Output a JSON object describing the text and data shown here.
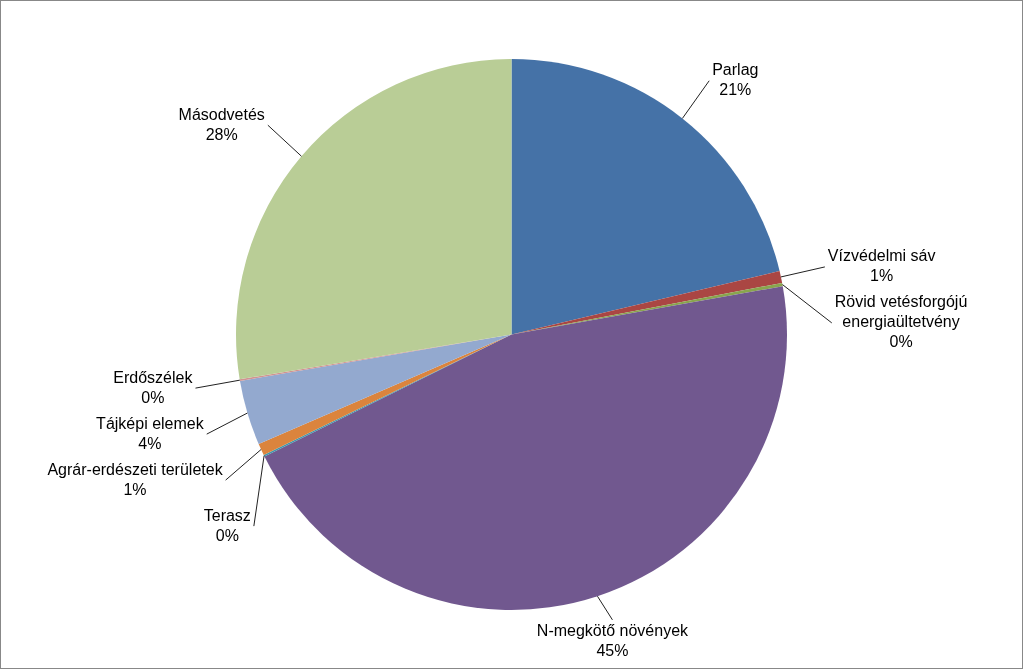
{
  "chart_data": {
    "type": "pie",
    "categories": [
      "Parlag",
      "Vízvédelmi sáv",
      "Rövid vetésforgójú energiaültetvény",
      "N-megkötő növények",
      "Terasz",
      "Agrár-erdészeti területek",
      "Tájképi elemek",
      "Erdőszélek",
      "Másodvetés"
    ],
    "values": [
      21.3,
      0.7,
      0.2,
      45.5,
      0.1,
      0.7,
      3.8,
      0.1,
      27.6
    ],
    "colors": [
      "#4572a7",
      "#aa4643",
      "#89a54e",
      "#71588f",
      "#4198af",
      "#db843d",
      "#93a9cf",
      "#d19392",
      "#b9cd96"
    ],
    "value_labels": [
      "21%",
      "1%",
      "0%",
      "45%",
      "0%",
      "1%",
      "4%",
      "0%",
      "28%"
    ]
  }
}
